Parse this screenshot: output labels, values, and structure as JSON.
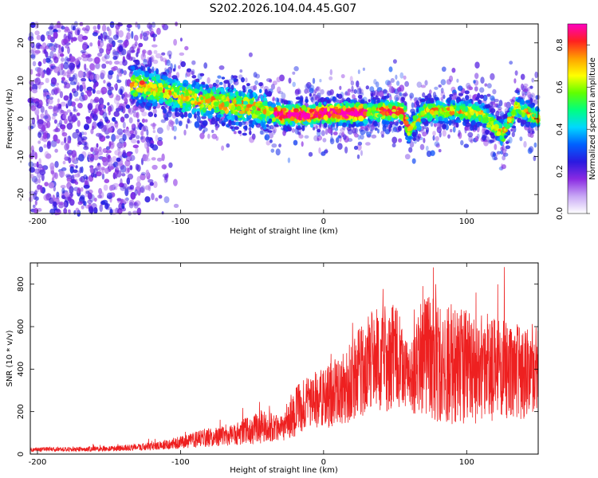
{
  "title": "S202.2026.104.04.45.G07",
  "chart_data": [
    {
      "type": "heatmap",
      "xlabel": "Height of straight line (km)",
      "ylabel": "Frequency (Hz)",
      "xlim": [
        -205,
        150
      ],
      "ylim": [
        -25,
        25
      ],
      "xticks": [
        -200,
        -100,
        0,
        100
      ],
      "yticks": [
        -20,
        -10,
        0,
        10,
        20
      ],
      "colorbar": {
        "label": "Normalized spectral amplitude",
        "range": [
          0,
          0.9
        ],
        "ticks": [
          0.0,
          0.2,
          0.4,
          0.6,
          0.8
        ],
        "colormap": [
          "#ffffff",
          "#c8a8f5",
          "#8a2be2",
          "#2a1ae0",
          "#0060ff",
          "#00d8ff",
          "#00ff80",
          "#60ff00",
          "#ffff00",
          "#ffa000",
          "#ff2020",
          "#ff00c0"
        ]
      },
      "ridge": [
        {
          "x": -130,
          "f": 9
        },
        {
          "x": -110,
          "f": 7
        },
        {
          "x": -90,
          "f": 5
        },
        {
          "x": -70,
          "f": 4
        },
        {
          "x": -50,
          "f": 3
        },
        {
          "x": -30,
          "f": 1
        },
        {
          "x": -10,
          "f": 1
        },
        {
          "x": 0,
          "f": 1.5
        },
        {
          "x": 20,
          "f": 1.5
        },
        {
          "x": 40,
          "f": 2
        },
        {
          "x": 55,
          "f": 2
        },
        {
          "x": 60,
          "f": -3
        },
        {
          "x": 70,
          "f": 2
        },
        {
          "x": 90,
          "f": 2
        },
        {
          "x": 110,
          "f": 1.5
        },
        {
          "x": 125,
          "f": -4
        },
        {
          "x": 135,
          "f": 3
        },
        {
          "x": 150,
          "f": 0
        }
      ]
    },
    {
      "type": "line",
      "xlabel": "Height of straight line (km)",
      "ylabel": "SNR (10 * v/v)",
      "xlim": [
        -205,
        150
      ],
      "ylim": [
        0,
        900
      ],
      "xticks": [
        -200,
        -100,
        0,
        100
      ],
      "yticks": [
        0,
        200,
        400,
        600,
        800
      ],
      "color": "#ee2020",
      "envelope": [
        {
          "x": -205,
          "base": 22,
          "spread": 10
        },
        {
          "x": -150,
          "base": 25,
          "spread": 12
        },
        {
          "x": -120,
          "base": 35,
          "spread": 18
        },
        {
          "x": -100,
          "base": 55,
          "spread": 30
        },
        {
          "x": -80,
          "base": 80,
          "spread": 45
        },
        {
          "x": -60,
          "base": 95,
          "spread": 55
        },
        {
          "x": -45,
          "base": 130,
          "spread": 80
        },
        {
          "x": -30,
          "base": 120,
          "spread": 60
        },
        {
          "x": -20,
          "base": 200,
          "spread": 120
        },
        {
          "x": -10,
          "base": 250,
          "spread": 120
        },
        {
          "x": 0,
          "base": 260,
          "spread": 150
        },
        {
          "x": 10,
          "base": 300,
          "spread": 160
        },
        {
          "x": 20,
          "base": 350,
          "spread": 200
        },
        {
          "x": 30,
          "base": 420,
          "spread": 230
        },
        {
          "x": 40,
          "base": 450,
          "spread": 260
        },
        {
          "x": 50,
          "base": 460,
          "spread": 250
        },
        {
          "x": 60,
          "base": 350,
          "spread": 150
        },
        {
          "x": 70,
          "base": 470,
          "spread": 300
        },
        {
          "x": 80,
          "base": 440,
          "spread": 290
        },
        {
          "x": 100,
          "base": 410,
          "spread": 280
        },
        {
          "x": 120,
          "base": 400,
          "spread": 250
        },
        {
          "x": 140,
          "base": 380,
          "spread": 220
        },
        {
          "x": 150,
          "base": 400,
          "spread": 200
        }
      ]
    }
  ]
}
